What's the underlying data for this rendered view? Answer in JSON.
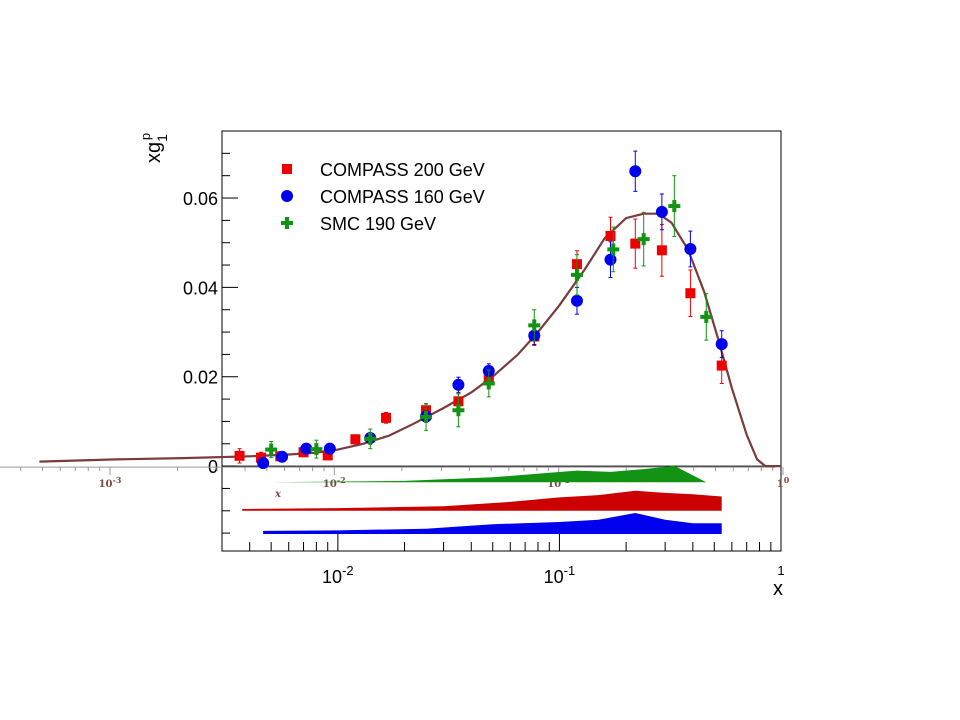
{
  "chart_data": {
    "type": "scatter",
    "title": "",
    "xlabel": "x",
    "ylabel": "xg",
    "ylabel_sub": "1",
    "ylabel_sup": "p",
    "xscale": "log",
    "xlim": [
      0.003,
      1.0
    ],
    "ylim": [
      -0.019,
      0.075
    ],
    "x_tick_labels": [
      {
        "value": 0.01,
        "base": "10",
        "exp": "-2"
      },
      {
        "value": 0.1,
        "base": "10",
        "exp": "-1"
      },
      {
        "value": 1.0,
        "base": "",
        "exp": "1"
      }
    ],
    "y_tick_labels": [
      {
        "value": 0,
        "label": "0"
      },
      {
        "value": 0.02,
        "label": "0.02"
      },
      {
        "value": 0.04,
        "label": "0.04"
      },
      {
        "value": 0.06,
        "label": "0.06"
      }
    ],
    "overlay_tick_labels": [
      {
        "value": 0.001,
        "base": "10",
        "exp": "-3"
      },
      {
        "value": 0.01,
        "base": "10",
        "exp": "-2"
      },
      {
        "value": 0.1,
        "base": "10",
        "exp": "-1"
      },
      {
        "value": 1.0,
        "base": "1",
        "exp": "0"
      }
    ],
    "overlay_xlabel": "x",
    "legend": {
      "position": "top-left"
    },
    "series": [
      {
        "name": "COMPASS 200 GeV",
        "color": "#ee0000",
        "marker": "square",
        "points": [
          {
            "x": 0.0036,
            "y": 0.0023,
            "err": 0.0016
          },
          {
            "x": 0.0045,
            "y": 0.0019,
            "err": 0.0012
          },
          {
            "x": 0.0055,
            "y": 0.0022,
            "err": 0.001
          },
          {
            "x": 0.007,
            "y": 0.0031,
            "err": 0.001
          },
          {
            "x": 0.009,
            "y": 0.0024,
            "err": 0.001
          },
          {
            "x": 0.012,
            "y": 0.006,
            "err": 0.001
          },
          {
            "x": 0.0165,
            "y": 0.0108,
            "err": 0.0012
          },
          {
            "x": 0.025,
            "y": 0.0125,
            "err": 0.0014
          },
          {
            "x": 0.035,
            "y": 0.0145,
            "err": 0.0017
          },
          {
            "x": 0.048,
            "y": 0.0195,
            "err": 0.0017
          },
          {
            "x": 0.077,
            "y": 0.029,
            "err": 0.002
          },
          {
            "x": 0.12,
            "y": 0.0452,
            "err": 0.003
          },
          {
            "x": 0.17,
            "y": 0.0515,
            "err": 0.0042
          },
          {
            "x": 0.22,
            "y": 0.0498,
            "err": 0.0055
          },
          {
            "x": 0.29,
            "y": 0.0483,
            "err": 0.0058
          },
          {
            "x": 0.39,
            "y": 0.0387,
            "err": 0.0052
          },
          {
            "x": 0.54,
            "y": 0.0225,
            "err": 0.004
          }
        ]
      },
      {
        "name": "COMPASS 160 GeV",
        "color": "#0000ee",
        "marker": "circle",
        "points": [
          {
            "x": 0.0046,
            "y": 0.0007,
            "err": 0.0012
          },
          {
            "x": 0.0056,
            "y": 0.0021,
            "err": 0.001
          },
          {
            "x": 0.0072,
            "y": 0.0039,
            "err": 0.0009
          },
          {
            "x": 0.0092,
            "y": 0.0039,
            "err": 0.0009
          },
          {
            "x": 0.014,
            "y": 0.0063,
            "err": 0.0009
          },
          {
            "x": 0.025,
            "y": 0.0111,
            "err": 0.0012
          },
          {
            "x": 0.035,
            "y": 0.0182,
            "err": 0.0017
          },
          {
            "x": 0.048,
            "y": 0.0213,
            "err": 0.0016
          },
          {
            "x": 0.077,
            "y": 0.0292,
            "err": 0.002
          },
          {
            "x": 0.12,
            "y": 0.037,
            "err": 0.003
          },
          {
            "x": 0.17,
            "y": 0.0462,
            "err": 0.004
          },
          {
            "x": 0.22,
            "y": 0.066,
            "err": 0.0045
          },
          {
            "x": 0.29,
            "y": 0.0569,
            "err": 0.004
          },
          {
            "x": 0.39,
            "y": 0.0486,
            "err": 0.004
          },
          {
            "x": 0.54,
            "y": 0.0273,
            "err": 0.003
          }
        ]
      },
      {
        "name": "SMC 190 GeV",
        "color": "#139313",
        "marker": "cross",
        "points": [
          {
            "x": 0.005,
            "y": 0.0037,
            "err": 0.0018
          },
          {
            "x": 0.008,
            "y": 0.0038,
            "err": 0.002
          },
          {
            "x": 0.014,
            "y": 0.0061,
            "err": 0.0022
          },
          {
            "x": 0.025,
            "y": 0.011,
            "err": 0.003
          },
          {
            "x": 0.035,
            "y": 0.0125,
            "err": 0.0037
          },
          {
            "x": 0.048,
            "y": 0.0185,
            "err": 0.003
          },
          {
            "x": 0.077,
            "y": 0.0315,
            "err": 0.0035
          },
          {
            "x": 0.12,
            "y": 0.0428,
            "err": 0.0045
          },
          {
            "x": 0.175,
            "y": 0.0485,
            "err": 0.005
          },
          {
            "x": 0.24,
            "y": 0.0508,
            "err": 0.006
          },
          {
            "x": 0.33,
            "y": 0.0582,
            "err": 0.0068
          },
          {
            "x": 0.46,
            "y": 0.0334,
            "err": 0.0052
          }
        ]
      }
    ],
    "fit_curve": {
      "color": "#7a3b3b",
      "points": [
        [
          0.00045,
          0.001
        ],
        [
          0.001,
          0.0015
        ],
        [
          0.002,
          0.0018
        ],
        [
          0.004,
          0.0022
        ],
        [
          0.006,
          0.0026
        ],
        [
          0.008,
          0.003
        ],
        [
          0.01,
          0.0037
        ],
        [
          0.013,
          0.005
        ],
        [
          0.017,
          0.0068
        ],
        [
          0.022,
          0.0095
        ],
        [
          0.03,
          0.013
        ],
        [
          0.04,
          0.0165
        ],
        [
          0.05,
          0.02
        ],
        [
          0.065,
          0.025
        ],
        [
          0.08,
          0.03
        ],
        [
          0.1,
          0.036
        ],
        [
          0.13,
          0.044
        ],
        [
          0.16,
          0.051
        ],
        [
          0.2,
          0.0555
        ],
        [
          0.24,
          0.0565
        ],
        [
          0.28,
          0.0565
        ],
        [
          0.32,
          0.0545
        ],
        [
          0.38,
          0.0485
        ],
        [
          0.45,
          0.039
        ],
        [
          0.52,
          0.0285
        ],
        [
          0.6,
          0.0175
        ],
        [
          0.7,
          0.007
        ],
        [
          0.78,
          0.0015
        ],
        [
          0.85,
          0.0
        ],
        [
          1.0,
          0.0
        ]
      ]
    },
    "systematic_bands": [
      {
        "name": "SMC 190 GeV",
        "color": "#139313",
        "baseline": -0.0036,
        "top": [
          [
            0.005,
            -0.0036
          ],
          [
            0.02,
            -0.0033
          ],
          [
            0.05,
            -0.0025
          ],
          [
            0.09,
            -0.0015
          ],
          [
            0.12,
            -0.001
          ],
          [
            0.17,
            -0.0013
          ],
          [
            0.25,
            -0.0006
          ],
          [
            0.33,
            0.0001
          ],
          [
            0.46,
            -0.0036
          ]
        ]
      },
      {
        "name": "COMPASS 200 GeV",
        "color": "#cc0000",
        "baseline": -0.01,
        "top": [
          [
            0.0037,
            -0.0096
          ],
          [
            0.01,
            -0.0094
          ],
          [
            0.03,
            -0.009
          ],
          [
            0.06,
            -0.008
          ],
          [
            0.1,
            -0.007
          ],
          [
            0.15,
            -0.0065
          ],
          [
            0.22,
            -0.0055
          ],
          [
            0.3,
            -0.006
          ],
          [
            0.4,
            -0.0063
          ],
          [
            0.54,
            -0.0068
          ]
        ]
      },
      {
        "name": "COMPASS 160 GeV",
        "color": "#0000ee",
        "baseline": -0.0152,
        "top": [
          [
            0.0046,
            -0.0145
          ],
          [
            0.01,
            -0.0144
          ],
          [
            0.025,
            -0.014
          ],
          [
            0.05,
            -0.013
          ],
          [
            0.1,
            -0.0125
          ],
          [
            0.15,
            -0.012
          ],
          [
            0.22,
            -0.0105
          ],
          [
            0.3,
            -0.012
          ],
          [
            0.4,
            -0.0128
          ],
          [
            0.54,
            -0.0128
          ]
        ]
      }
    ]
  }
}
